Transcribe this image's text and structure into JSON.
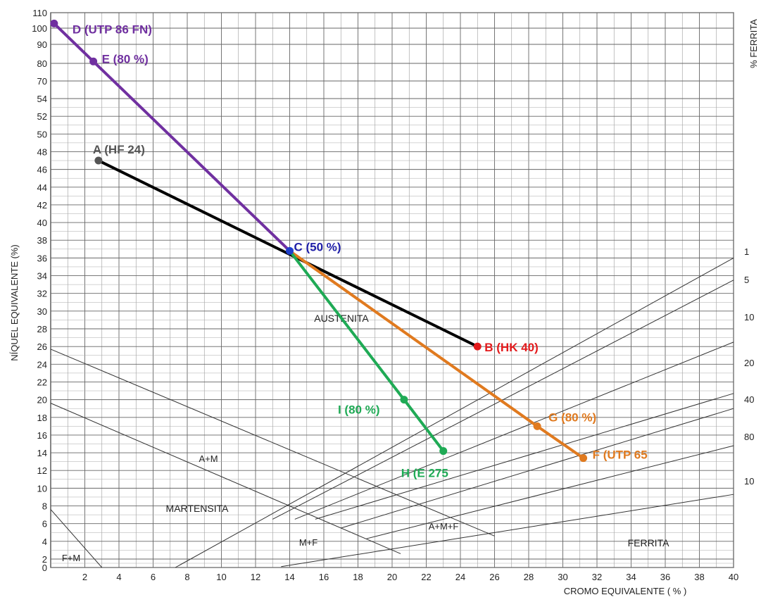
{
  "chart_data": {
    "type": "line",
    "title": "",
    "xlabel": "CROMO EQUIVALENTE  ( % )",
    "ylabel": "NÍQUEL EQUIVALENTE (%)",
    "right_axis_label": "% FERRITA",
    "x_ticks": [
      "2",
      "4",
      "6",
      "8",
      "10",
      "12",
      "14",
      "16",
      "18",
      "20",
      "22",
      "24",
      "26",
      "28",
      "30",
      "32",
      "34",
      "36",
      "38",
      "40"
    ],
    "y_ticks": [
      "0",
      "2",
      "4",
      "6",
      "8",
      "10",
      "12",
      "14",
      "16",
      "18",
      "20",
      "22",
      "24",
      "26",
      "28",
      "30",
      "32",
      "34",
      "36",
      "38",
      "40",
      "42",
      "44",
      "46",
      "48",
      "50",
      "52",
      "54",
      "70",
      "80",
      "90",
      "100",
      "110"
    ],
    "ferrite_labels": [
      "1",
      "5",
      "10",
      "20",
      "40",
      "80",
      "10"
    ],
    "regions": [
      "AUSTENITA",
      "A+M",
      "MARTENSITA",
      "M+F",
      "A+M+F",
      "FERRITA",
      "F+M"
    ],
    "xlim": [
      0,
      40
    ],
    "ylim": [
      0,
      110
    ],
    "grid": true,
    "series": [
      {
        "name": "A (HF 24)",
        "color": "#000000",
        "points": [
          {
            "label": "A (HF 24)",
            "x": 2.8,
            "y": 47
          },
          {
            "label": "B (HK 40)",
            "x": 25,
            "y": 26
          }
        ]
      },
      {
        "name": "D (UTP 86 FN)",
        "color": "#7030a0",
        "points": [
          {
            "label": "D (UTP 86 FN)",
            "x": 0.2,
            "y": 103
          },
          {
            "label": "E (80 %)",
            "x": 2.5,
            "y": 81
          },
          {
            "label": "C (50 %)",
            "x": 14,
            "y": 36.8
          }
        ]
      },
      {
        "name": "F (UTP 65",
        "color": "#e07a1f",
        "points": [
          {
            "label": "C (50 %)",
            "x": 14,
            "y": 36.8
          },
          {
            "label": "G (80 %)",
            "x": 28.5,
            "y": 17
          },
          {
            "label": "F (UTP 65",
            "x": 31.2,
            "y": 13.4
          }
        ]
      },
      {
        "name": "H (E 275",
        "color": "#1faa55",
        "points": [
          {
            "label": "C (50 %)",
            "x": 14,
            "y": 36.8
          },
          {
            "label": "I (80 %)",
            "x": 20.7,
            "y": 20
          },
          {
            "label": "H (E 275",
            "x": 23,
            "y": 14.2
          }
        ]
      }
    ],
    "points": [
      {
        "label": "A (HF 24)",
        "x": 2.8,
        "y": 47,
        "color": "#555555",
        "label_color": "#555555"
      },
      {
        "label": "B (HK 40)",
        "x": 25,
        "y": 26,
        "color": "#e31a1c",
        "label_color": "#e31a1c"
      },
      {
        "label": "C (50 %)",
        "x": 14,
        "y": 36.8,
        "color": "#1f3fcc",
        "label_color": "#1f1fa8"
      },
      {
        "label": "D (UTP 86 FN)",
        "x": 0.2,
        "y": 103,
        "color": "#7030a0",
        "label_color": "#7030a0"
      },
      {
        "label": "E (80 %)",
        "x": 2.5,
        "y": 81,
        "color": "#7030a0",
        "label_color": "#7030a0"
      },
      {
        "label": "F (UTP 65",
        "x": 31.2,
        "y": 13.4,
        "color": "#e07a1f",
        "label_color": "#e07a1f"
      },
      {
        "label": "G (80 %)",
        "x": 28.5,
        "y": 17,
        "color": "#e07a1f",
        "label_color": "#e07a1f"
      },
      {
        "label": "H (E 275",
        "x": 23,
        "y": 14.2,
        "color": "#1faa55",
        "label_color": "#1faa55"
      },
      {
        "label": "I (80 %)",
        "x": 20.7,
        "y": 20,
        "color": "#1faa55",
        "label_color": "#1faa55"
      }
    ]
  }
}
